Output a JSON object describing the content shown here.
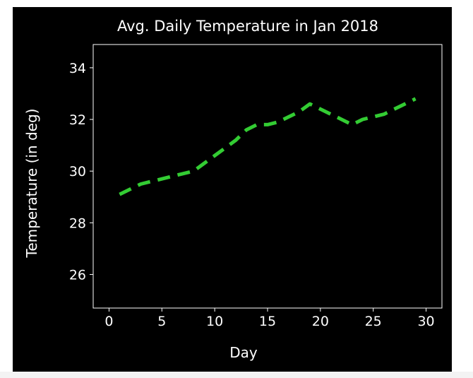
{
  "chart_data": {
    "type": "line",
    "title": "Avg. Daily Temperature in Jan 2018",
    "xlabel": "Day",
    "ylabel": "Temperature (in deg)",
    "xlim": [
      -1.5,
      31.5
    ],
    "ylim": [
      24.7,
      34.9
    ],
    "xticks": [
      0,
      5,
      10,
      15,
      20,
      25,
      30
    ],
    "yticks": [
      26,
      28,
      30,
      32,
      34
    ],
    "grid": false,
    "legend": "none",
    "series": [
      {
        "line_style": "dashed",
        "color": "#33cc33",
        "x": [
          1,
          2,
          3,
          4,
          5,
          6,
          7,
          8,
          9,
          10,
          11,
          12,
          13,
          14,
          15,
          16,
          17,
          18,
          19,
          20,
          21,
          22,
          23,
          24,
          25,
          26,
          27,
          28,
          29
        ],
        "y": [
          29.1,
          29.3,
          29.5,
          29.6,
          29.7,
          29.8,
          29.9,
          30.0,
          30.3,
          30.6,
          30.9,
          31.2,
          31.6,
          31.8,
          31.8,
          31.9,
          32.1,
          32.3,
          32.6,
          32.4,
          32.2,
          32.0,
          31.8,
          32.0,
          32.1,
          32.2,
          32.4,
          32.6,
          32.8
        ]
      }
    ]
  }
}
